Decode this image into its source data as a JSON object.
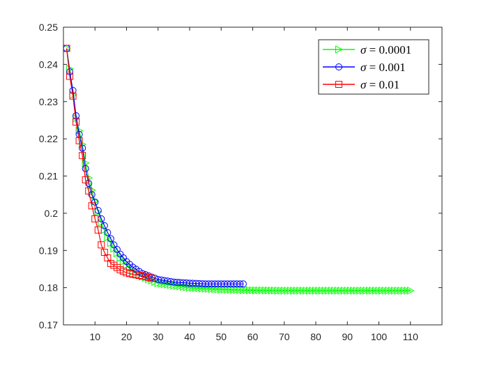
{
  "chart_data": {
    "type": "line",
    "title": "",
    "xlabel": "",
    "ylabel": "",
    "xlim": [
      0,
      120
    ],
    "ylim": [
      0.17,
      0.25
    ],
    "x_ticks": [
      10,
      20,
      30,
      40,
      50,
      60,
      70,
      80,
      90,
      100,
      110
    ],
    "y_ticks": [
      0.17,
      0.18,
      0.19,
      0.2,
      0.21,
      0.22,
      0.23,
      0.24,
      0.25
    ],
    "x_tick_labels": [
      "10",
      "20",
      "30",
      "40",
      "50",
      "60",
      "70",
      "80",
      "90",
      "100",
      "110"
    ],
    "y_tick_labels": [
      "0.17",
      "0.18",
      "0.19",
      "0.2",
      "0.21",
      "0.22",
      "0.23",
      "0.24",
      "0.25"
    ],
    "grid": false,
    "legend_position": "top-right",
    "series": [
      {
        "name": "σ = 0.0001",
        "legend_symbol": "σ",
        "legend_value": "= 0.0001",
        "color": "#00ff00",
        "marker": "triangle-right",
        "x": [
          1,
          2,
          3,
          4,
          5,
          6,
          7,
          8,
          9,
          10,
          12,
          14,
          16,
          18,
          20,
          22,
          25,
          30,
          40,
          50,
          60,
          70,
          80,
          90,
          100,
          110
        ],
        "y": [
          0.2443,
          0.2388,
          0.2318,
          0.2255,
          0.2222,
          0.2185,
          0.2135,
          0.2095,
          0.2062,
          0.2032,
          0.1975,
          0.1935,
          0.1905,
          0.188,
          0.186,
          0.1843,
          0.183,
          0.1812,
          0.18,
          0.1795,
          0.1793,
          0.1792,
          0.1792,
          0.1792,
          0.1792,
          0.1792
        ]
      },
      {
        "name": "σ = 0.001",
        "legend_symbol": "σ",
        "legend_value": "= 0.001",
        "color": "#0000ff",
        "marker": "circle",
        "x": [
          1,
          2,
          3,
          4,
          5,
          6,
          7,
          8,
          9,
          10,
          12,
          14,
          16,
          18,
          20,
          22,
          25,
          30,
          35,
          40,
          45,
          50,
          57
        ],
        "y": [
          0.2443,
          0.238,
          0.233,
          0.2262,
          0.2212,
          0.2175,
          0.212,
          0.208,
          0.205,
          0.203,
          0.1985,
          0.1948,
          0.1915,
          0.189,
          0.187,
          0.1855,
          0.1838,
          0.1822,
          0.1815,
          0.1812,
          0.181,
          0.181,
          0.181
        ]
      },
      {
        "name": "σ = 0.01",
        "legend_symbol": "σ",
        "legend_value": "= 0.01",
        "color": "#ff0000",
        "marker": "square",
        "x": [
          1,
          2,
          3,
          4,
          5,
          6,
          7,
          8,
          9,
          10,
          11,
          12,
          13,
          14,
          15,
          16,
          18,
          20,
          22,
          24,
          26,
          28
        ],
        "y": [
          0.2443,
          0.2368,
          0.2315,
          0.2245,
          0.2195,
          0.2155,
          0.209,
          0.206,
          0.202,
          0.1985,
          0.1955,
          0.1915,
          0.1895,
          0.188,
          0.1865,
          0.186,
          0.1848,
          0.184,
          0.1836,
          0.1833,
          0.183,
          0.1825
        ]
      }
    ]
  }
}
